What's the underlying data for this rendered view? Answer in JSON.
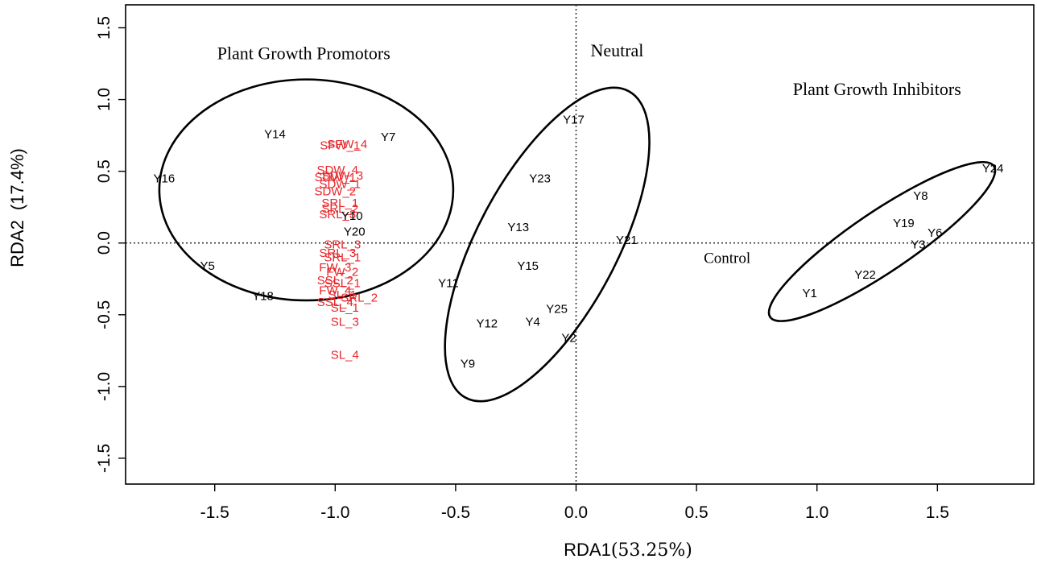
{
  "chart_data": {
    "type": "scatter",
    "xlabel": "RDA1",
    "xlabel_pct": "(53.25%)",
    "ylabel": "RDA2",
    "ylabel_pct": "(17.4%)",
    "xlim": [
      -1.87,
      1.9
    ],
    "ylim": [
      -1.68,
      1.66
    ],
    "x_ticks": [
      -1.5,
      -1.0,
      -0.5,
      0.0,
      0.5,
      1.0,
      1.5
    ],
    "x_tick_labels": [
      "-1.5",
      "-1.0",
      "-0.5",
      "0.0",
      "0.5",
      "1.0",
      "1.5"
    ],
    "y_ticks": [
      -1.5,
      -1.0,
      -0.5,
      0.0,
      0.5,
      1.0,
      1.5
    ],
    "y_tick_labels": [
      "-1.5",
      "-1.0",
      "-0.5",
      "0.0",
      "0.5",
      "1.0",
      "1.5"
    ],
    "reference_lines": {
      "x": 0.0,
      "y": 0.0,
      "style": "dotted"
    },
    "grid": false,
    "colors": {
      "sites": "#000000",
      "variables": "#e8262b"
    },
    "sites": [
      {
        "label": "Y1",
        "x": 0.97,
        "y": -0.35
      },
      {
        "label": "Y2",
        "x": -0.03,
        "y": -0.66
      },
      {
        "label": "Y3",
        "x": 1.42,
        "y": -0.01
      },
      {
        "label": "Y4",
        "x": -0.18,
        "y": -0.55
      },
      {
        "label": "Y5",
        "x": -1.53,
        "y": -0.16
      },
      {
        "label": "Y6",
        "x": 1.49,
        "y": 0.07
      },
      {
        "label": "Y7",
        "x": -0.78,
        "y": 0.74
      },
      {
        "label": "Y8",
        "x": 1.43,
        "y": 0.33
      },
      {
        "label": "Y9",
        "x": -0.45,
        "y": -0.84
      },
      {
        "label": "Y10",
        "x": -0.93,
        "y": 0.19
      },
      {
        "label": "Y11",
        "x": -0.53,
        "y": -0.28
      },
      {
        "label": "Y12",
        "x": -0.37,
        "y": -0.56
      },
      {
        "label": "Y13",
        "x": -0.24,
        "y": 0.11
      },
      {
        "label": "Y14",
        "x": -1.25,
        "y": 0.76
      },
      {
        "label": "Y15",
        "x": -0.2,
        "y": -0.16
      },
      {
        "label": "Y16",
        "x": -1.71,
        "y": 0.45
      },
      {
        "label": "Y17",
        "x": -0.01,
        "y": 0.86
      },
      {
        "label": "Y18",
        "x": -1.3,
        "y": -0.37
      },
      {
        "label": "Y19",
        "x": 1.36,
        "y": 0.14
      },
      {
        "label": "Y20",
        "x": -0.92,
        "y": 0.08
      },
      {
        "label": "Y21",
        "x": 0.21,
        "y": 0.02
      },
      {
        "label": "Y22",
        "x": 1.2,
        "y": -0.22
      },
      {
        "label": "Y23",
        "x": -0.15,
        "y": 0.45
      },
      {
        "label": "Y24",
        "x": 1.73,
        "y": 0.52
      },
      {
        "label": "Y25",
        "x": -0.08,
        "y": -0.46
      }
    ],
    "variables": [
      {
        "label": "SFW_1",
        "x": -0.98,
        "y": 0.68
      },
      {
        "label": "SFW_4",
        "x": -0.95,
        "y": 0.69
      },
      {
        "label": "SDW_4",
        "x": -0.99,
        "y": 0.51
      },
      {
        "label": "SDW_1",
        "x": -1.0,
        "y": 0.46
      },
      {
        "label": "SDW_3",
        "x": -0.97,
        "y": 0.47
      },
      {
        "label": "SDW_1",
        "x": -0.98,
        "y": 0.41
      },
      {
        "label": "SDW_2",
        "x": -1.0,
        "y": 0.36
      },
      {
        "label": "SRL_1",
        "x": -0.98,
        "y": 0.28
      },
      {
        "label": "SRL_2",
        "x": -0.98,
        "y": 0.24
      },
      {
        "label": "SRL_3",
        "x": -0.99,
        "y": 0.2
      },
      {
        "label": "SRL_3",
        "x": -0.97,
        "y": -0.01
      },
      {
        "label": "SRL_3",
        "x": -0.99,
        "y": -0.07
      },
      {
        "label": "SRL_1",
        "x": -0.97,
        "y": -0.1
      },
      {
        "label": "FW_3",
        "x": -1.0,
        "y": -0.17
      },
      {
        "label": "FW_2",
        "x": -0.97,
        "y": -0.2
      },
      {
        "label": "SSL_2",
        "x": -1.0,
        "y": -0.26
      },
      {
        "label": "SSL_1",
        "x": -0.97,
        "y": -0.28
      },
      {
        "label": "FW_4",
        "x": -1.0,
        "y": -0.33
      },
      {
        "label": "SL_1",
        "x": -0.97,
        "y": -0.36
      },
      {
        "label": "SRL_2",
        "x": -0.9,
        "y": -0.38
      },
      {
        "label": "SSL_4",
        "x": -1.0,
        "y": -0.41
      },
      {
        "label": "SL_1",
        "x": -0.96,
        "y": -0.45
      },
      {
        "label": "SL_3",
        "x": -0.96,
        "y": -0.55
      },
      {
        "label": "SL_4",
        "x": -0.96,
        "y": -0.78
      }
    ],
    "ellipses": [
      {
        "cx": -1.12,
        "cy": 0.37,
        "rx": 0.61,
        "ry": 0.77,
        "rotate": 0
      },
      {
        "cx": -0.12,
        "cy": -0.01,
        "rx": 0.29,
        "ry": 1.21,
        "rotate": 28
      },
      {
        "cx": 1.27,
        "cy": 0.01,
        "rx": 0.56,
        "ry": 0.21,
        "rotate": -34
      }
    ],
    "annotations": [
      {
        "text": "Plant Growth Promotors",
        "x": -1.49,
        "y": 1.28
      },
      {
        "text": "Neutral",
        "x": 0.06,
        "y": 1.3
      },
      {
        "text": "Plant Growth Inhibitors",
        "x": 0.9,
        "y": 1.03
      },
      {
        "text": "Control",
        "x": 0.53,
        "y": -0.14
      }
    ]
  }
}
